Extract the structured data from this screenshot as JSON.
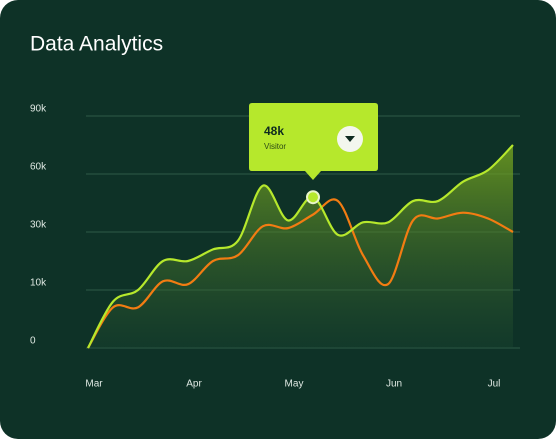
{
  "chart_data": {
    "type": "line",
    "title": "Data Analytics",
    "categories": [
      "Mar",
      null,
      null,
      null,
      "Apr",
      null,
      null,
      null,
      "May",
      null,
      null,
      null,
      "Jun",
      null,
      null,
      null,
      "Jul",
      null
    ],
    "series": [
      {
        "name": "Visitor",
        "color": "#b6e82c",
        "values": [
          0,
          8000,
          10000,
          20000,
          20000,
          24000,
          27000,
          54000,
          36000,
          48000,
          29000,
          35000,
          35000,
          46000,
          46000,
          56000,
          62000,
          75000
        ]
      },
      {
        "color": "#f27c12",
        "values": [
          0,
          7000,
          7000,
          13000,
          12000,
          20000,
          22000,
          33000,
          32000,
          39000,
          46000,
          22000,
          12000,
          36000,
          37000,
          40000,
          37000,
          30000
        ]
      }
    ],
    "ylim": [
      0,
      90000
    ],
    "yticks": [
      0,
      {
        "value": 10000,
        "label": "10k"
      },
      {
        "value": 30000,
        "label": "30k"
      },
      {
        "value": 60000,
        "label": "60k"
      },
      {
        "value": 90000,
        "label": "90k"
      }
    ],
    "grid": true,
    "tooltip": {
      "value": 48000,
      "label": "48k",
      "name": "Visitor"
    }
  }
}
